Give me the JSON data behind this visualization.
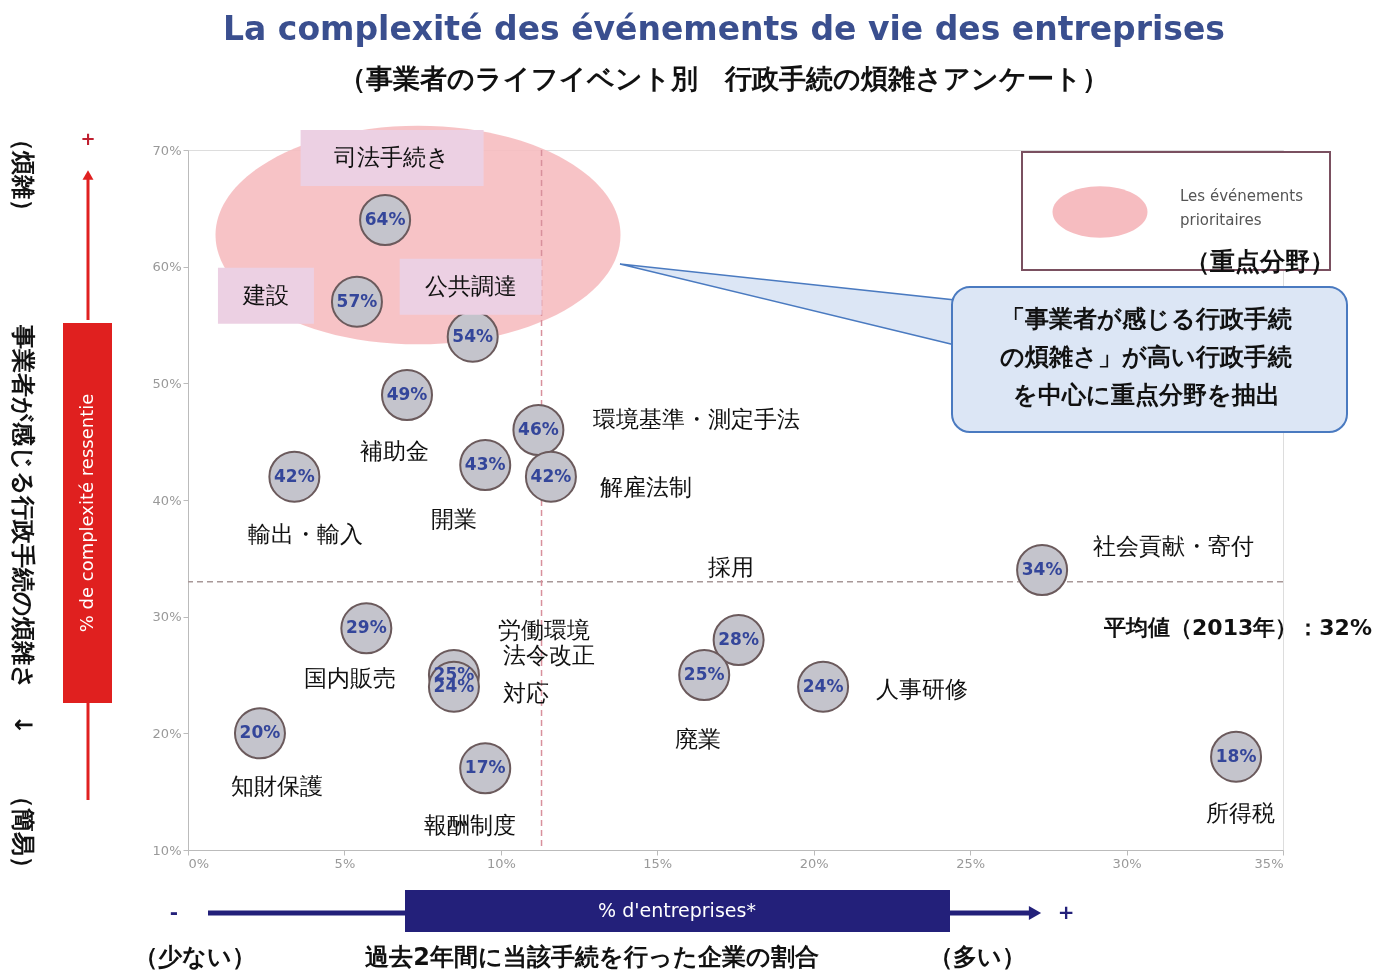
{
  "chart_data": {
    "type": "scatter",
    "title": "La complexité des événements de vie des entreprises",
    "subtitle": "（事業者のライフイベント別　行政手続の煩雑さアンケート）",
    "xlabel": "% d'entreprises*",
    "ylabel": "% de complexité ressentie",
    "xlim": [
      0,
      35
    ],
    "xticks": [
      {
        "value": 0,
        "label": "0%"
      },
      {
        "value": 5,
        "label": "5%"
      },
      {
        "value": 10,
        "label": "10%"
      },
      {
        "value": 15,
        "label": "15%"
      },
      {
        "value": 20,
        "label": "20%"
      },
      {
        "value": 25,
        "label": "25%"
      },
      {
        "value": 30,
        "label": "30%"
      },
      {
        "value": 35,
        "label": "35%"
      }
    ],
    "ylim": [
      10,
      70
    ],
    "yticks": [
      {
        "value": 10,
        "label": "10%"
      },
      {
        "value": 20,
        "label": "20%"
      },
      {
        "value": 30,
        "label": "30%"
      },
      {
        "value": 40,
        "label": "40%"
      },
      {
        "value": 50,
        "label": "50%"
      },
      {
        "value": 60,
        "label": "60%"
      },
      {
        "value": 70,
        "label": "70%"
      }
    ],
    "series": [
      {
        "color": "#c4c4cc",
        "x": [
          6.3,
          5.4,
          9.1,
          7.0,
          3.4,
          9.5,
          11.2,
          11.6,
          27.3,
          5.7,
          8.5,
          8.5,
          17.6,
          16.5,
          20.3,
          2.3,
          9.5,
          33.5
        ],
        "values": [
          64,
          57,
          54,
          49,
          42,
          43,
          46,
          42,
          34,
          29,
          25,
          24,
          28,
          25,
          24,
          20,
          17,
          18
        ],
        "value_labels": [
          "64%",
          "57%",
          "54%",
          "49%",
          "42%",
          "43%",
          "46%",
          "42%",
          "34%",
          "29%",
          "25%",
          "24%",
          "28%",
          "25%",
          "24%",
          "20%",
          "17%",
          "18%"
        ]
      }
    ],
    "marker": "circle",
    "grid": false,
    "ref_lines": [
      {
        "axis": "y",
        "value": 33,
        "color": "#a89898",
        "line_style": "dashed"
      },
      {
        "axis": "x",
        "value": 11.3,
        "color": "#d8909c",
        "line_style": "dashed"
      }
    ],
    "annotations": [
      {
        "text": "司法手続き",
        "x": 6.3,
        "y": 64
      },
      {
        "text": "建設",
        "x": 5.4,
        "y": 57
      },
      {
        "text": "公共調達",
        "x": 9.1,
        "y": 54
      },
      {
        "text": "補助金",
        "x": 7.0,
        "y": 49
      },
      {
        "text": "輸出・輸入",
        "x": 3.4,
        "y": 42
      },
      {
        "text": "開業",
        "x": 9.5,
        "y": 43
      },
      {
        "text": "環境基準・測定手法",
        "x": 11.2,
        "y": 46
      },
      {
        "text": "解雇法制",
        "x": 11.6,
        "y": 42
      },
      {
        "text": "社会貢献・寄付",
        "x": 27.3,
        "y": 34
      },
      {
        "text": "国内販売",
        "x": 5.7,
        "y": 29
      },
      {
        "text": "労働環境",
        "x": 8.5,
        "y": 25
      },
      {
        "text": "法令改正対応",
        "x": 8.5,
        "y": 24
      },
      {
        "text": "採用",
        "x": 17.6,
        "y": 28
      },
      {
        "text": "廃業",
        "x": 16.5,
        "y": 25
      },
      {
        "text": "人事研修",
        "x": 20.3,
        "y": 24
      },
      {
        "text": "知財保護",
        "x": 2.3,
        "y": 20
      },
      {
        "text": "報酬制度",
        "x": 9.5,
        "y": 17
      },
      {
        "text": "所得税",
        "x": 33.5,
        "y": 18
      },
      "平均値（2013年）：32%",
      "（重点分野）",
      "「事業者が感じる行政手続の煩雑さ」が高い行政手続を中心に重点分野を抽出",
      "（煩雑）",
      "事業者が感じる行政手続の煩雑さ　↓",
      "（簡易）",
      "（少ない）",
      "過去2年間に当該手続を行った企業の割合",
      "（多い）",
      "+",
      "-",
      "+",
      "Les événements prioritaires"
    ]
  }
}
